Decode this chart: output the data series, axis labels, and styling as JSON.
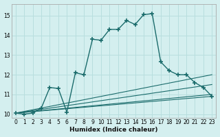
{
  "xlabel": "Humidex (Indice chaleur)",
  "ylabel": "",
  "bg_color": "#d4efef",
  "grid_color": "#b8dede",
  "line_color": "#1a6b6b",
  "xlim": [
    -0.5,
    23.5
  ],
  "ylim": [
    9.8,
    15.6
  ],
  "xticks": [
    0,
    1,
    2,
    3,
    4,
    5,
    6,
    7,
    8,
    9,
    10,
    11,
    12,
    13,
    14,
    15,
    16,
    17,
    18,
    19,
    20,
    21,
    22,
    23
  ],
  "yticks": [
    10,
    11,
    12,
    13,
    14,
    15
  ],
  "main_x": [
    0,
    1,
    2,
    3,
    4,
    5,
    6,
    7,
    8,
    9,
    10,
    11,
    12,
    13,
    14,
    15,
    16,
    17,
    18,
    19,
    20,
    21,
    22,
    23
  ],
  "main_y": [
    10.05,
    10.0,
    10.05,
    10.3,
    11.35,
    11.3,
    10.1,
    12.1,
    12.0,
    13.8,
    13.75,
    14.3,
    14.3,
    14.75,
    14.55,
    15.05,
    15.1,
    12.65,
    12.2,
    12.0,
    12.0,
    11.6,
    11.35,
    10.9
  ],
  "ref_lines": [
    {
      "x": [
        0,
        23
      ],
      "y": [
        10.05,
        10.9
      ]
    },
    {
      "x": [
        0,
        23
      ],
      "y": [
        10.05,
        11.0
      ]
    },
    {
      "x": [
        0,
        23
      ],
      "y": [
        10.05,
        11.5
      ]
    },
    {
      "x": [
        0,
        23
      ],
      "y": [
        10.05,
        12.0
      ]
    }
  ]
}
